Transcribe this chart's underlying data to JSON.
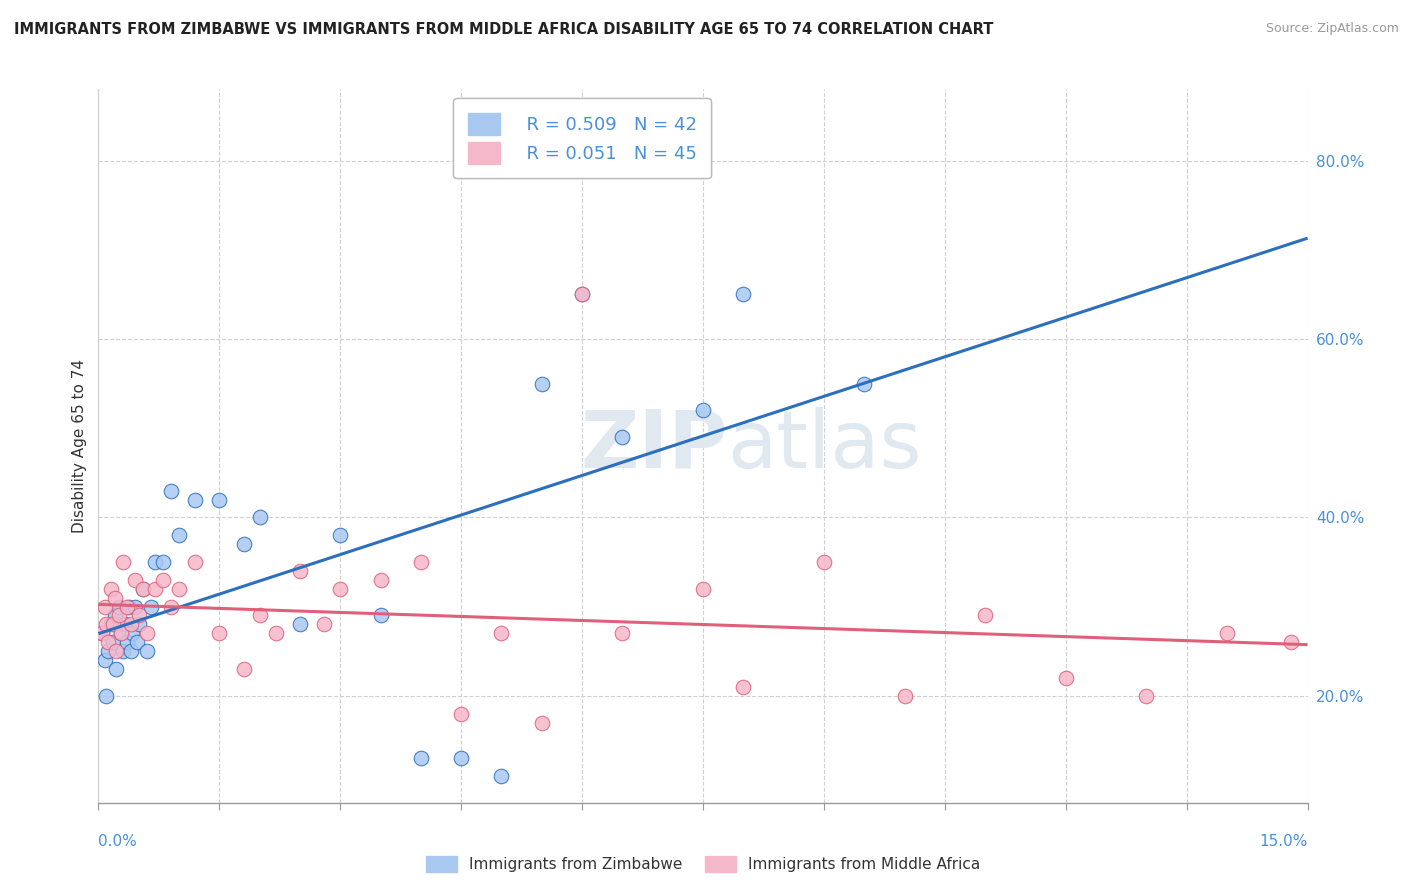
{
  "title": "IMMIGRANTS FROM ZIMBABWE VS IMMIGRANTS FROM MIDDLE AFRICA DISABILITY AGE 65 TO 74 CORRELATION CHART",
  "source": "Source: ZipAtlas.com",
  "ylabel": "Disability Age 65 to 74",
  "legend_label1": "Immigrants from Zimbabwe",
  "legend_label2": "Immigrants from Middle Africa",
  "R1": 0.509,
  "N1": 42,
  "R2": 0.051,
  "N2": 45,
  "color_blue": "#a8c8f0",
  "color_pink": "#f5b8cb",
  "color_blue_line": "#2c6fbe",
  "color_pink_line": "#e0607a",
  "xlim": [
    0.0,
    15.0
  ],
  "ylim": [
    8.0,
    88.0
  ],
  "yticks": [
    20,
    40,
    60,
    80
  ],
  "blue_x": [
    0.05,
    0.08,
    0.1,
    0.12,
    0.15,
    0.18,
    0.2,
    0.22,
    0.25,
    0.28,
    0.3,
    0.33,
    0.35,
    0.38,
    0.4,
    0.42,
    0.45,
    0.48,
    0.5,
    0.55,
    0.6,
    0.65,
    0.7,
    0.8,
    0.9,
    1.0,
    1.2,
    1.5,
    1.8,
    2.0,
    2.5,
    3.0,
    3.5,
    4.0,
    4.5,
    5.0,
    5.5,
    6.0,
    6.5,
    7.5,
    8.0,
    9.5
  ],
  "blue_y": [
    27,
    24,
    20,
    25,
    28,
    26,
    29,
    23,
    30,
    27,
    25,
    28,
    26,
    30,
    25,
    27,
    30,
    26,
    28,
    32,
    25,
    30,
    35,
    35,
    43,
    38,
    42,
    42,
    37,
    40,
    28,
    38,
    29,
    13,
    13,
    11,
    55,
    65,
    49,
    52,
    65,
    55
  ],
  "pink_x": [
    0.05,
    0.08,
    0.1,
    0.12,
    0.15,
    0.18,
    0.2,
    0.22,
    0.25,
    0.28,
    0.3,
    0.35,
    0.4,
    0.45,
    0.5,
    0.55,
    0.6,
    0.7,
    0.8,
    0.9,
    1.0,
    1.2,
    1.5,
    1.8,
    2.0,
    2.2,
    2.5,
    2.8,
    3.0,
    3.5,
    4.0,
    4.5,
    5.0,
    5.5,
    6.0,
    6.5,
    7.5,
    8.0,
    9.0,
    10.0,
    11.0,
    12.0,
    13.0,
    14.0,
    14.8
  ],
  "pink_y": [
    27,
    30,
    28,
    26,
    32,
    28,
    31,
    25,
    29,
    27,
    35,
    30,
    28,
    33,
    29,
    32,
    27,
    32,
    33,
    30,
    32,
    35,
    27,
    23,
    29,
    27,
    34,
    28,
    32,
    33,
    35,
    18,
    27,
    17,
    65,
    27,
    32,
    21,
    35,
    20,
    29,
    22,
    20,
    27,
    26
  ]
}
